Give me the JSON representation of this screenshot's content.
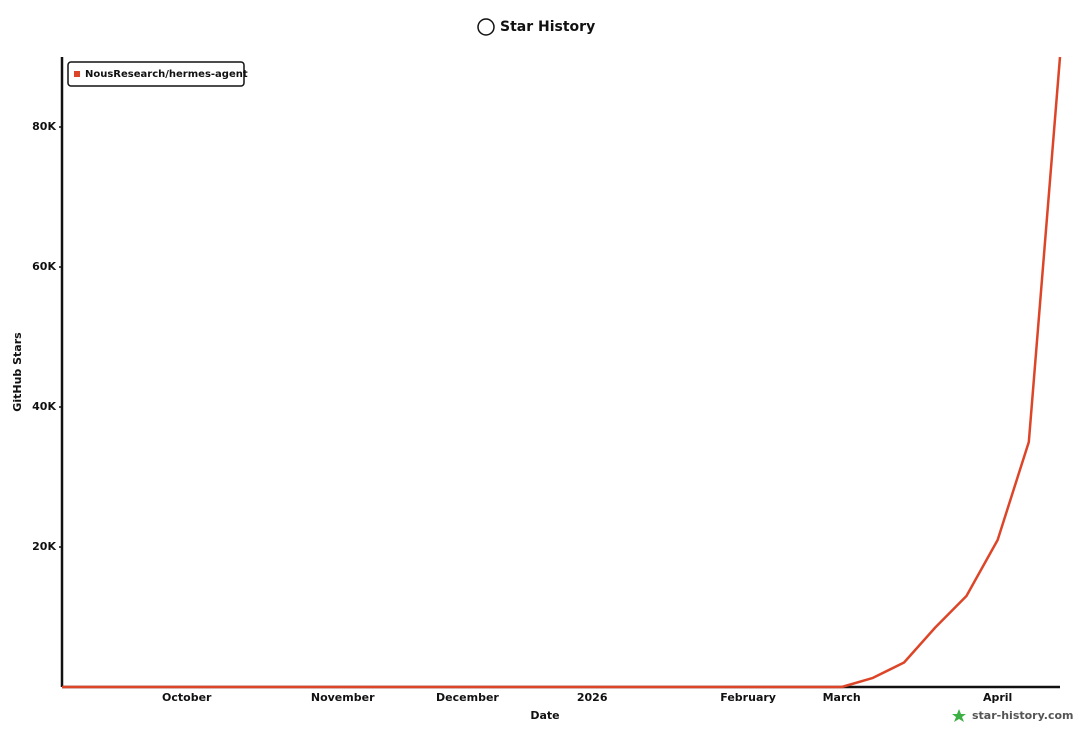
{
  "chart_data": {
    "type": "line",
    "title": "Star History",
    "x_label": "Date",
    "y_label": "GitHub Stars",
    "watermark": "star-history.com",
    "categories": [
      null,
      null,
      null,
      null,
      "October",
      null,
      null,
      null,
      null,
      "November",
      null,
      null,
      null,
      "December",
      null,
      null,
      null,
      "2026",
      null,
      null,
      null,
      null,
      "February",
      null,
      null,
      "March",
      null,
      null,
      null,
      null,
      "April",
      null,
      null
    ],
    "series": [
      {
        "name": "NousResearch/hermes-agent",
        "color": "#dd4528",
        "values": [
          0,
          0,
          0,
          0,
          0,
          0,
          0,
          0,
          0,
          0,
          0,
          0,
          0,
          0,
          0,
          0,
          0,
          0,
          0,
          0,
          0,
          0,
          0,
          0,
          0,
          0,
          1300,
          3500,
          8500,
          13000,
          21000,
          35000,
          90000
        ]
      }
    ],
    "ylim": [
      0,
      90000
    ],
    "yticks": [
      {
        "value": 20000,
        "label": "20K"
      },
      {
        "value": 40000,
        "label": "40K"
      },
      {
        "value": 60000,
        "label": "60K"
      },
      {
        "value": 80000,
        "label": "80K"
      }
    ],
    "legend": "top-left",
    "grid": false
  }
}
